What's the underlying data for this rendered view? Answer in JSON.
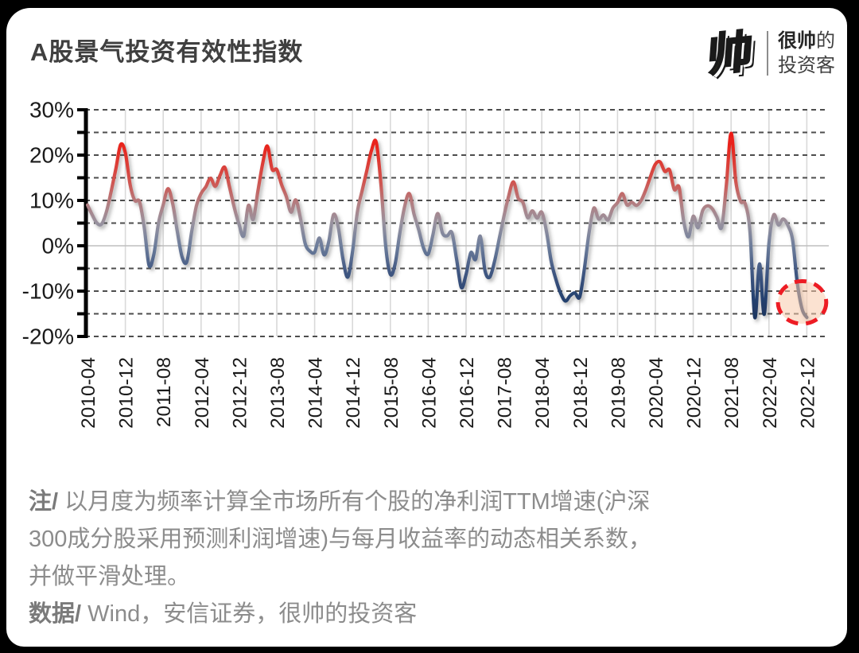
{
  "header": {
    "title": "A股景气投资有效性指数",
    "logo": {
      "glyph": "帅",
      "glyph_color": "#ffe14d",
      "name_line1_bold": "很帅",
      "name_line1_rest": "的",
      "name_line2": "投资客"
    }
  },
  "footer": {
    "note_label": "注/",
    "note_line1": "以月度为频率计算全市场所有个股的净利润TTM增速(沪深",
    "note_line2": "300成分股采用预测利润增速)与每月收益率的动态相关系数，",
    "note_line3": "并做平滑处理。",
    "source_label": "数据/",
    "source_text": "Wind，安信证券，很帅的投资客"
  },
  "chart_data": {
    "type": "line",
    "title": "A股景气投资有效性指数",
    "ylabel": "",
    "xlabel": "",
    "ylim": [
      -20,
      30
    ],
    "grid": {
      "h_step_percent": 5,
      "h_style": "dashed",
      "zero_line": "solid",
      "v_at_every_tick": true
    },
    "y_tick_labels": [
      "30%",
      "20%",
      "10%",
      "0%",
      "-10%",
      "-20%"
    ],
    "y_tick_values": [
      30,
      20,
      10,
      0,
      -10,
      -20
    ],
    "x_tick_labels": [
      "2010-04",
      "2010-12",
      "2011-08",
      "2012-04",
      "2012-12",
      "2013-08",
      "2014-04",
      "2014-12",
      "2015-08",
      "2016-04",
      "2016-12",
      "2017-08",
      "2018-04",
      "2018-12",
      "2019-08",
      "2020-04",
      "2020-12",
      "2021-08",
      "2022-04",
      "2022-12"
    ],
    "x_months_per_tick": 8,
    "start_month": "2010-04",
    "end_month": "2022-12",
    "series": [
      {
        "name": "A股景气投资有效性指数",
        "unit": "%",
        "monthly_from": "2010-04",
        "values": [
          9.0,
          6.8,
          5.0,
          4.8,
          7.5,
          12.0,
          17.0,
          22.3,
          20.5,
          13.5,
          10.0,
          9.7,
          4.0,
          -4.3,
          -2.0,
          5.0,
          9.0,
          12.6,
          9.3,
          3.0,
          -2.5,
          -3.5,
          3.0,
          8.7,
          11.5,
          13.0,
          14.9,
          13.1,
          15.5,
          17.3,
          13.0,
          8.5,
          4.8,
          2.2,
          8.9,
          5.8,
          12.0,
          18.0,
          22.0,
          16.9,
          16.8,
          13.5,
          10.9,
          7.4,
          10.1,
          6.0,
          0.5,
          -1.2,
          -1.4,
          1.7,
          -2.0,
          1.0,
          6.9,
          4.0,
          -3.0,
          -6.9,
          -1.3,
          7.3,
          12.0,
          16.5,
          21.0,
          22.9,
          13.7,
          0.0,
          -6.3,
          -4.0,
          2.8,
          8.6,
          11.5,
          7.0,
          3.5,
          -0.5,
          -1.8,
          2.5,
          7.1,
          2.8,
          2.2,
          2.9,
          -3.0,
          -9.2,
          -6.3,
          -1.5,
          -3.0,
          2.1,
          -5.5,
          -6.9,
          -3.5,
          1.5,
          6.5,
          11.0,
          14.1,
          10.5,
          9.6,
          6.2,
          7.7,
          6.1,
          7.4,
          3.1,
          -3.5,
          -7.5,
          -10.5,
          -12.2,
          -11.0,
          -10.4,
          -11.3,
          -5.0,
          3.0,
          8.3,
          5.9,
          6.8,
          5.7,
          8.3,
          9.5,
          11.5,
          9.0,
          9.6,
          8.9,
          10.0,
          12.4,
          15.4,
          18.0,
          18.5,
          16.4,
          16.7,
          12.4,
          12.9,
          5.3,
          2.0,
          6.5,
          4.0,
          7.8,
          8.8,
          8.2,
          6.3,
          4.1,
          13.5,
          24.8,
          14.2,
          9.8,
          9.2,
          3.0,
          -15.8,
          -4.0,
          -15.1,
          0.6,
          6.8,
          4.6,
          5.9,
          4.5,
          1.2,
          -8.3,
          -14.0,
          -15.8
        ]
      }
    ],
    "line_color_rule": "gradient by value: red = high, gray = middle, navy = low",
    "color_stops": [
      {
        "value": 30,
        "color": "#f50f0f"
      },
      {
        "value": 22,
        "color": "#e8251d"
      },
      {
        "value": 14,
        "color": "#d05550"
      },
      {
        "value": 9,
        "color": "#b08084"
      },
      {
        "value": 5,
        "color": "#98929f"
      },
      {
        "value": 0,
        "color": "#6d7d9b"
      },
      {
        "value": -6,
        "color": "#3f5681"
      },
      {
        "value": -12,
        "color": "#24406e"
      },
      {
        "value": -20,
        "color": "#16294f"
      }
    ],
    "grid_colors": {
      "vertical": "#d9d9d9",
      "dashed_horizontal": "#4d4d4d",
      "zero_line": "#bfbfbf",
      "axis": "#000000",
      "tick_label": "#1a1a1a"
    },
    "highlight": {
      "style": "dashed-ellipse",
      "meaning": "circles the latest reading (2022-12, about -16%)",
      "month_index": 151,
      "value": -12.5,
      "rx_months": 5.1,
      "ry_percent": 4.7,
      "stroke": "#ed1c24",
      "fill": "#f8cbac"
    },
    "legend": null
  }
}
